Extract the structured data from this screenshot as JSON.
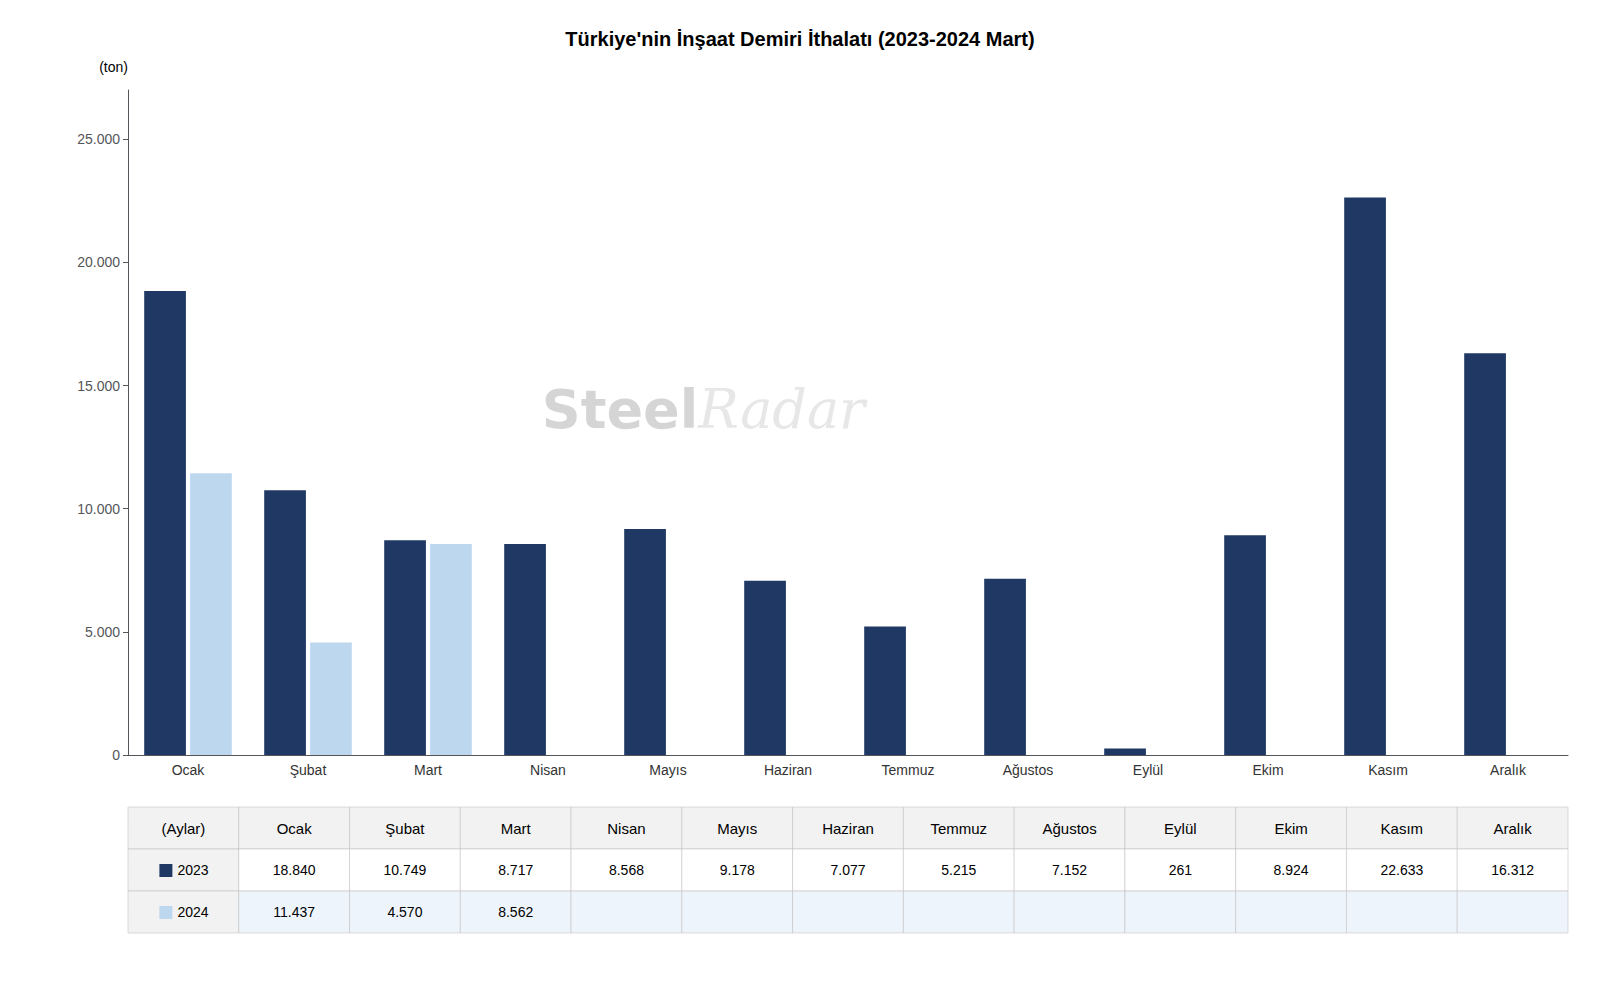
{
  "chart_data": {
    "type": "bar",
    "title": "Türkiye'nin İnşaat Demiri İthalatı (2023-2024 Mart)",
    "ylabel": "(ton)",
    "xlabel": "(Aylar)",
    "categories": [
      "Ocak",
      "Şubat",
      "Mart",
      "Nisan",
      "Mayıs",
      "Haziran",
      "Temmuz",
      "Ağustos",
      "Eylül",
      "Ekim",
      "Kasım",
      "Aralık"
    ],
    "series": [
      {
        "name": "2023",
        "color": "#1F3864",
        "values": [
          18840,
          10749,
          8717,
          8568,
          9178,
          7077,
          5215,
          7152,
          261,
          8924,
          22633,
          16312
        ],
        "value_labels": [
          "18.840",
          "10.749",
          "8.717",
          "8.568",
          "9.178",
          "7.077",
          "5.215",
          "7.152",
          "261",
          "8.924",
          "22.633",
          "16.312"
        ]
      },
      {
        "name": "2024",
        "color": "#BDD7EE",
        "values": [
          11437,
          4570,
          8562,
          null,
          null,
          null,
          null,
          null,
          null,
          null,
          null,
          null
        ],
        "value_labels": [
          "11.437",
          "4.570",
          "8.562",
          null,
          null,
          null,
          null,
          null,
          null,
          null,
          null,
          null
        ]
      }
    ],
    "ylim": [
      0,
      27000
    ],
    "yticks": [
      0,
      {
        "value": 5000,
        "label": "5.000"
      },
      {
        "value": 10000,
        "label": "10.000"
      },
      {
        "value": 15000,
        "label": "15.000"
      },
      {
        "value": 20000,
        "label": "20.000"
      },
      {
        "value": 25000,
        "label": "25.000"
      }
    ],
    "grid": false,
    "annotations": [
      "Steel",
      "Radar"
    ]
  }
}
